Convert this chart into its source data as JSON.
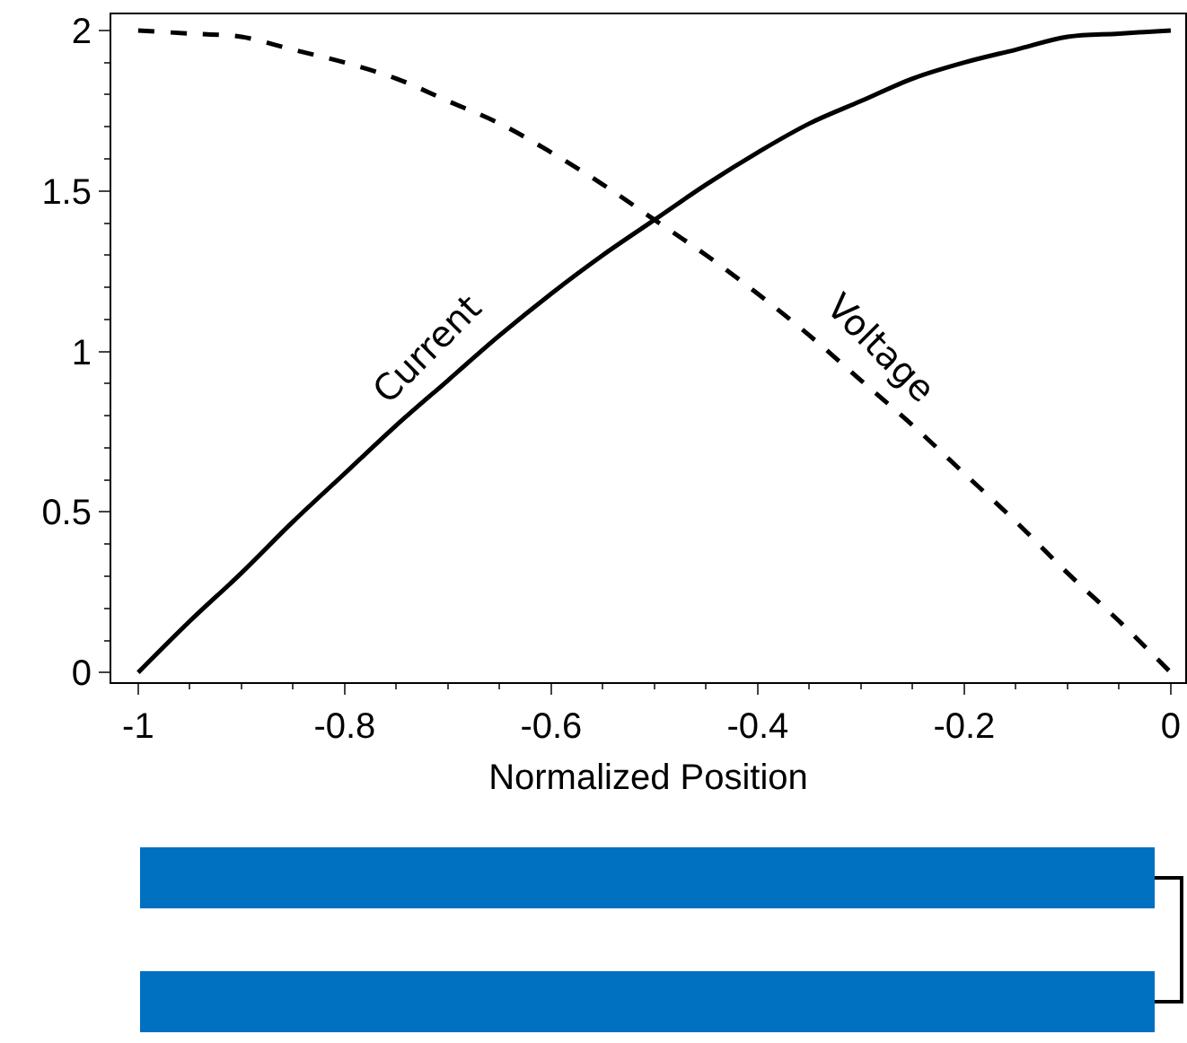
{
  "chart_data": {
    "type": "line",
    "xlabel": "Normalized Position",
    "x": [
      -1,
      -0.95,
      -0.9,
      -0.85,
      -0.8,
      -0.75,
      -0.7,
      -0.65,
      -0.6,
      -0.55,
      -0.5,
      -0.45,
      -0.4,
      -0.35,
      -0.3,
      -0.25,
      -0.2,
      -0.15,
      -0.1,
      -0.05,
      0
    ],
    "series": [
      {
        "name": "Current",
        "color": "#000000",
        "line_style": "solid",
        "values": [
          0,
          0.16,
          0.31,
          0.47,
          0.62,
          0.77,
          0.91,
          1.05,
          1.18,
          1.3,
          1.41,
          1.52,
          1.62,
          1.71,
          1.78,
          1.85,
          1.9,
          1.94,
          1.98,
          1.99,
          2
        ]
      },
      {
        "name": "Voltage",
        "color": "#000000",
        "line_style": "dashed",
        "values": [
          2,
          1.99,
          1.98,
          1.94,
          1.9,
          1.85,
          1.78,
          1.71,
          1.62,
          1.52,
          1.41,
          1.3,
          1.18,
          1.05,
          0.91,
          0.77,
          0.62,
          0.47,
          0.31,
          0.16,
          0
        ]
      }
    ],
    "xlim": [
      -1.026,
      0.014
    ],
    "ylim": [
      -0.03,
      2.05
    ],
    "xticks": [
      -1,
      -0.8,
      -0.6,
      -0.4,
      -0.2,
      0
    ],
    "yticks": [
      0,
      0.5,
      1,
      1.5,
      2
    ],
    "grid": false,
    "legend": false
  }
}
